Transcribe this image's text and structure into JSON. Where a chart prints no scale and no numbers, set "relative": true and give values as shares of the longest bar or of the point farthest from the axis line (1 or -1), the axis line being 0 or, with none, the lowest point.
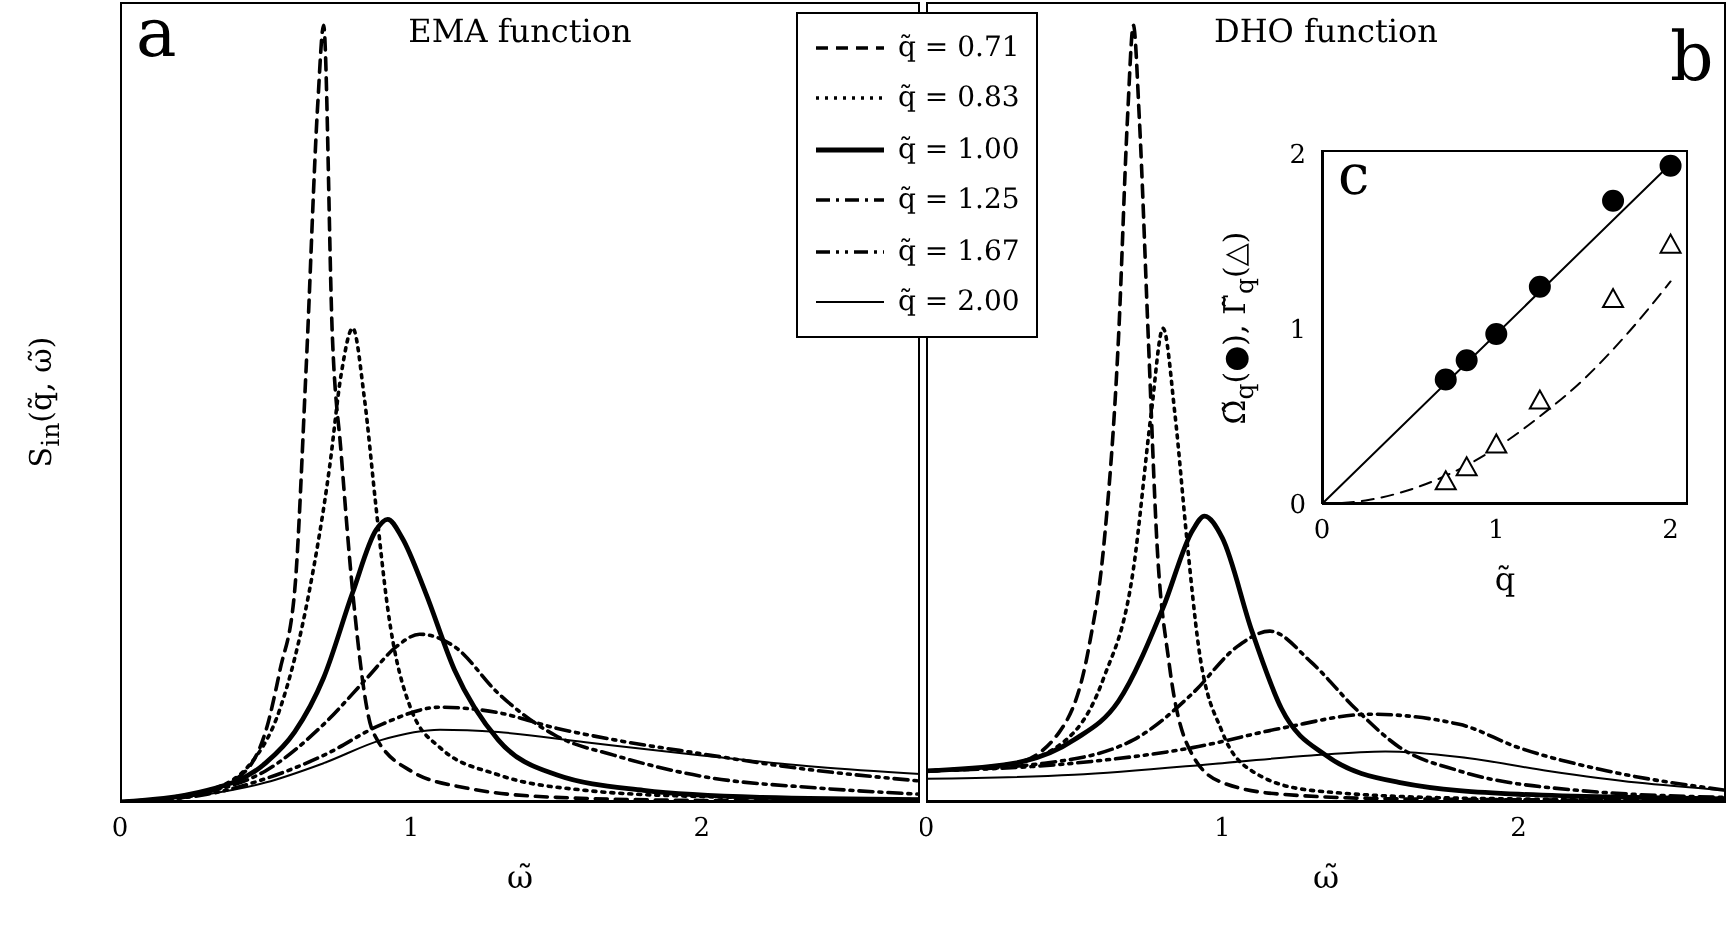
{
  "chart_data": [
    {
      "type": "line",
      "title": "EMA function",
      "xlabel": "ω̃",
      "ylabel": "S$_{in}$(q̃, ω̃)",
      "annotations": [
        "a"
      ],
      "relative": true,
      "xlim": [
        0,
        2.75
      ],
      "xticks": [
        0,
        1,
        2
      ],
      "legend": "top right",
      "marker": "none",
      "series": [
        {
          "name": "q̃ = 0.71",
          "color": "#000000",
          "line_style": "dashed",
          "x": [
            0,
            0.2,
            0.4,
            0.5,
            0.55,
            0.6,
            0.64,
            0.68,
            0.7,
            0.73,
            0.76,
            0.8,
            0.87,
            1.0,
            1.19,
            1.5,
            2.0,
            2.75
          ],
          "values": [
            0,
            0.005,
            0.03,
            0.09,
            0.17,
            0.27,
            0.56,
            0.9,
            1.0,
            0.6,
            0.45,
            0.27,
            0.09,
            0.04,
            0.018,
            0.006,
            0.002,
            0.001
          ]
        },
        {
          "name": "q̃ = 0.83",
          "color": "#000000",
          "line_style": "dotted",
          "x": [
            0,
            0.3,
            0.45,
            0.55,
            0.65,
            0.72,
            0.76,
            0.8,
            0.84,
            0.88,
            0.92,
            1.0,
            1.1,
            1.3,
            1.6,
            2.0,
            2.75
          ],
          "values": [
            0,
            0.015,
            0.05,
            0.12,
            0.27,
            0.43,
            0.55,
            0.61,
            0.52,
            0.38,
            0.25,
            0.12,
            0.07,
            0.035,
            0.015,
            0.007,
            0.003
          ]
        },
        {
          "name": "q̃ = 1.00",
          "color": "#000000",
          "line_style": "solid",
          "x": [
            0,
            0.3,
            0.5,
            0.6,
            0.7,
            0.8,
            0.88,
            0.92,
            0.97,
            1.05,
            1.15,
            1.3,
            1.5,
            1.8,
            2.2,
            2.75
          ],
          "values": [
            0,
            0.015,
            0.05,
            0.09,
            0.16,
            0.27,
            0.35,
            0.364,
            0.34,
            0.27,
            0.17,
            0.08,
            0.035,
            0.015,
            0.006,
            0.003
          ]
        },
        {
          "name": "q̃ = 1.25",
          "color": "#000000",
          "line_style": "dashdot",
          "x": [
            0,
            0.3,
            0.5,
            0.7,
            0.85,
            0.95,
            1.03,
            1.15,
            1.3,
            1.5,
            1.7,
            2.0,
            2.4,
            2.75
          ],
          "values": [
            0,
            0.013,
            0.04,
            0.1,
            0.16,
            0.2,
            0.216,
            0.2,
            0.14,
            0.085,
            0.06,
            0.033,
            0.018,
            0.01
          ]
        },
        {
          "name": "q̃ = 1.67",
          "color": "#000000",
          "line_style": "dashdotdot",
          "x": [
            0,
            0.3,
            0.5,
            0.7,
            0.9,
            1.1,
            1.3,
            1.5,
            1.7,
            2.0,
            2.3,
            2.75
          ],
          "values": [
            0,
            0.01,
            0.03,
            0.06,
            0.1,
            0.122,
            0.115,
            0.095,
            0.08,
            0.062,
            0.045,
            0.027
          ]
        },
        {
          "name": "q̃ = 2.00",
          "color": "#000000",
          "line_style": "solid",
          "x": [
            0,
            0.3,
            0.5,
            0.7,
            0.9,
            1.1,
            1.3,
            1.6,
            2.0,
            2.4,
            2.75
          ],
          "values": [
            0,
            0.01,
            0.025,
            0.05,
            0.08,
            0.093,
            0.09,
            0.077,
            0.06,
            0.045,
            0.036
          ]
        }
      ]
    },
    {
      "type": "line",
      "title": "DHO function",
      "xlabel": "ω̃",
      "annotations": [
        "b"
      ],
      "relative": true,
      "xlim": [
        0,
        2.7
      ],
      "xticks": [
        0,
        1,
        2
      ],
      "marker": "none",
      "series": [
        {
          "color": "#000000",
          "line_style": "dashed",
          "x": [
            0,
            0.3,
            0.45,
            0.55,
            0.6,
            0.65,
            0.68,
            0.7,
            0.72,
            0.75,
            0.78,
            0.82,
            0.9,
            1.0,
            1.2,
            1.6,
            2.7
          ],
          "values": [
            0.04,
            0.05,
            0.09,
            0.2,
            0.33,
            0.6,
            0.88,
            1.0,
            0.88,
            0.6,
            0.33,
            0.18,
            0.06,
            0.025,
            0.01,
            0.004,
            0.002
          ]
        },
        {
          "color": "#000000",
          "line_style": "dotted",
          "x": [
            0,
            0.3,
            0.5,
            0.6,
            0.7,
            0.76,
            0.8,
            0.84,
            0.88,
            0.92,
            1.0,
            1.1,
            1.3,
            1.8,
            2.7
          ],
          "values": [
            0.04,
            0.05,
            0.09,
            0.16,
            0.3,
            0.5,
            0.61,
            0.5,
            0.34,
            0.2,
            0.09,
            0.04,
            0.015,
            0.005,
            0.002
          ]
        },
        {
          "color": "#000000",
          "line_style": "solid",
          "x": [
            0,
            0.3,
            0.5,
            0.65,
            0.8,
            0.9,
            0.94,
            1.0,
            1.1,
            1.2,
            1.35,
            1.6,
            2.0,
            2.7
          ],
          "values": [
            0.04,
            0.05,
            0.08,
            0.13,
            0.25,
            0.35,
            0.368,
            0.34,
            0.22,
            0.12,
            0.06,
            0.025,
            0.01,
            0.004
          ]
        },
        {
          "color": "#000000",
          "line_style": "dashdot",
          "x": [
            0,
            0.4,
            0.7,
            0.9,
            1.05,
            1.16,
            1.3,
            1.45,
            1.6,
            1.8,
            2.2,
            2.7
          ],
          "values": [
            0.04,
            0.05,
            0.08,
            0.14,
            0.2,
            0.22,
            0.18,
            0.12,
            0.07,
            0.04,
            0.015,
            0.006
          ]
        },
        {
          "color": "#000000",
          "line_style": "dashdotdot",
          "x": [
            0,
            0.5,
            0.9,
            1.2,
            1.5,
            1.8,
            2.0,
            2.3,
            2.7
          ],
          "values": [
            0.04,
            0.05,
            0.07,
            0.095,
            0.113,
            0.1,
            0.07,
            0.04,
            0.015
          ]
        },
        {
          "color": "#000000",
          "line_style": "solid",
          "x": [
            0,
            0.5,
            1.0,
            1.3,
            1.55,
            1.8,
            2.1,
            2.4,
            2.7
          ],
          "values": [
            0.03,
            0.035,
            0.05,
            0.06,
            0.065,
            0.058,
            0.04,
            0.025,
            0.015
          ]
        }
      ]
    },
    {
      "type": "scatter",
      "xlabel": "q̃",
      "ylabel": "Ω̃$_{q}$(●), Γ̃$_{q}$(△)",
      "annotations": [
        "c"
      ],
      "xlim": [
        0,
        2.1
      ],
      "ylim": [
        0,
        2.02
      ],
      "xticks": [
        0,
        1,
        2
      ],
      "yticks": [
        0,
        1,
        2
      ],
      "series": [
        {
          "type": "line",
          "color": "#000000",
          "line_style": "solid",
          "marker": "none",
          "x": [
            0,
            2
          ],
          "values": [
            0,
            1.94
          ]
        },
        {
          "type": "line",
          "color": "#000000",
          "line_style": "dashed",
          "marker": "none",
          "x": [
            0,
            0.25,
            0.5,
            0.75,
            1,
            1.25,
            1.5,
            1.75,
            2
          ],
          "values": [
            0,
            0.02,
            0.08,
            0.18,
            0.32,
            0.5,
            0.71,
            0.97,
            1.27
          ]
        },
        {
          "color": "#000000",
          "marker": "circle",
          "x": [
            0.71,
            0.83,
            1.0,
            1.25,
            1.67,
            2.0
          ],
          "values": [
            0.71,
            0.82,
            0.97,
            1.24,
            1.73,
            1.93
          ]
        },
        {
          "color": "#000000",
          "marker": "triangle",
          "x": [
            0.71,
            0.83,
            1.0,
            1.25,
            1.67,
            2.0
          ],
          "values": [
            0.13,
            0.21,
            0.34,
            0.59,
            1.17,
            1.48
          ]
        }
      ]
    }
  ]
}
